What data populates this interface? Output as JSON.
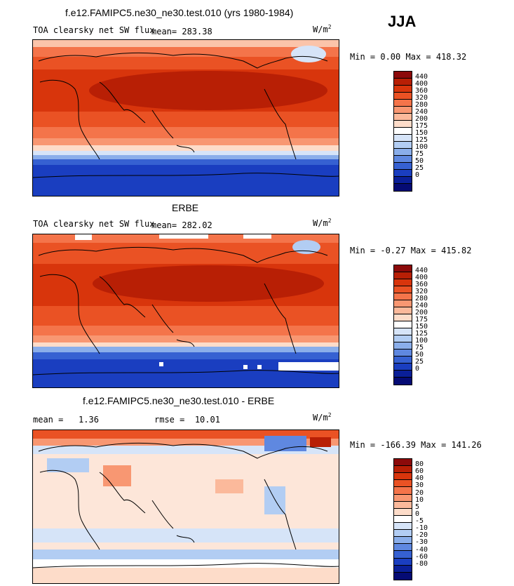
{
  "season": "JJA",
  "panels": [
    {
      "title": "f.e12.FAMIPC5.ne30_ne30.test.010 (yrs 1980-1984)",
      "subtitle": "TOA clearsky net SW flux",
      "mean_label": "mean=",
      "mean": "283.38",
      "units_base": "W/m",
      "units_exp": "2",
      "min_label": "Min =",
      "min": "0.00",
      "max_label": "Max =",
      "max": "418.32",
      "colorbar": [
        "440",
        "400",
        "360",
        "320",
        "280",
        "240",
        "200",
        "175",
        "150",
        "125",
        "100",
        "75",
        "50",
        "25",
        "0"
      ],
      "palette": [
        "#8c0a0a",
        "#b81f05",
        "#d8350c",
        "#ea5224",
        "#f4744a",
        "#f89772",
        "#fbb99b",
        "#fddcc9",
        "#ffffff",
        "#d6e4f8",
        "#b2cdf3",
        "#8aaeea",
        "#5f88e0",
        "#3661d2",
        "#1a3ec0",
        "#0a1f98",
        "#050b74"
      ]
    },
    {
      "title": "ERBE",
      "subtitle": "TOA clearsky net SW flux",
      "mean_label": "mean=",
      "mean": "282.02",
      "units_base": "W/m",
      "units_exp": "2",
      "min_label": "Min =",
      "min": "-0.27",
      "max_label": "Max =",
      "max": "415.82",
      "colorbar": [
        "440",
        "400",
        "360",
        "320",
        "280",
        "240",
        "200",
        "175",
        "150",
        "125",
        "100",
        "75",
        "50",
        "25",
        "0"
      ],
      "palette": [
        "#8c0a0a",
        "#b81f05",
        "#d8350c",
        "#ea5224",
        "#f4744a",
        "#f89772",
        "#fbb99b",
        "#fddcc9",
        "#ffffff",
        "#d6e4f8",
        "#b2cdf3",
        "#8aaeea",
        "#5f88e0",
        "#3661d2",
        "#1a3ec0",
        "#0a1f98",
        "#050b74"
      ]
    },
    {
      "title": "f.e12.FAMIPC5.ne30_ne30.test.010 - ERBE",
      "mean_label": "mean =",
      "mean": "1.36",
      "rmse_label": "rmse =",
      "rmse": "10.01",
      "units_base": "W/m",
      "units_exp": "2",
      "min_label": "Min =",
      "min": "-166.39",
      "max_label": "Max =",
      "max": "141.26",
      "colorbar": [
        "80",
        "60",
        "40",
        "30",
        "20",
        "10",
        "5",
        "0",
        "-5",
        "-10",
        "-20",
        "-30",
        "-40",
        "-60",
        "-80"
      ],
      "palette": [
        "#8c0a0a",
        "#b81f05",
        "#d8350c",
        "#ea5224",
        "#f4744a",
        "#f89772",
        "#fbb99b",
        "#fddcc9",
        "#ffffff",
        "#d6e4f8",
        "#b2cdf3",
        "#8aaeea",
        "#5f88e0",
        "#3661d2",
        "#1a3ec0",
        "#0a1f98",
        "#050b74"
      ]
    }
  ]
}
